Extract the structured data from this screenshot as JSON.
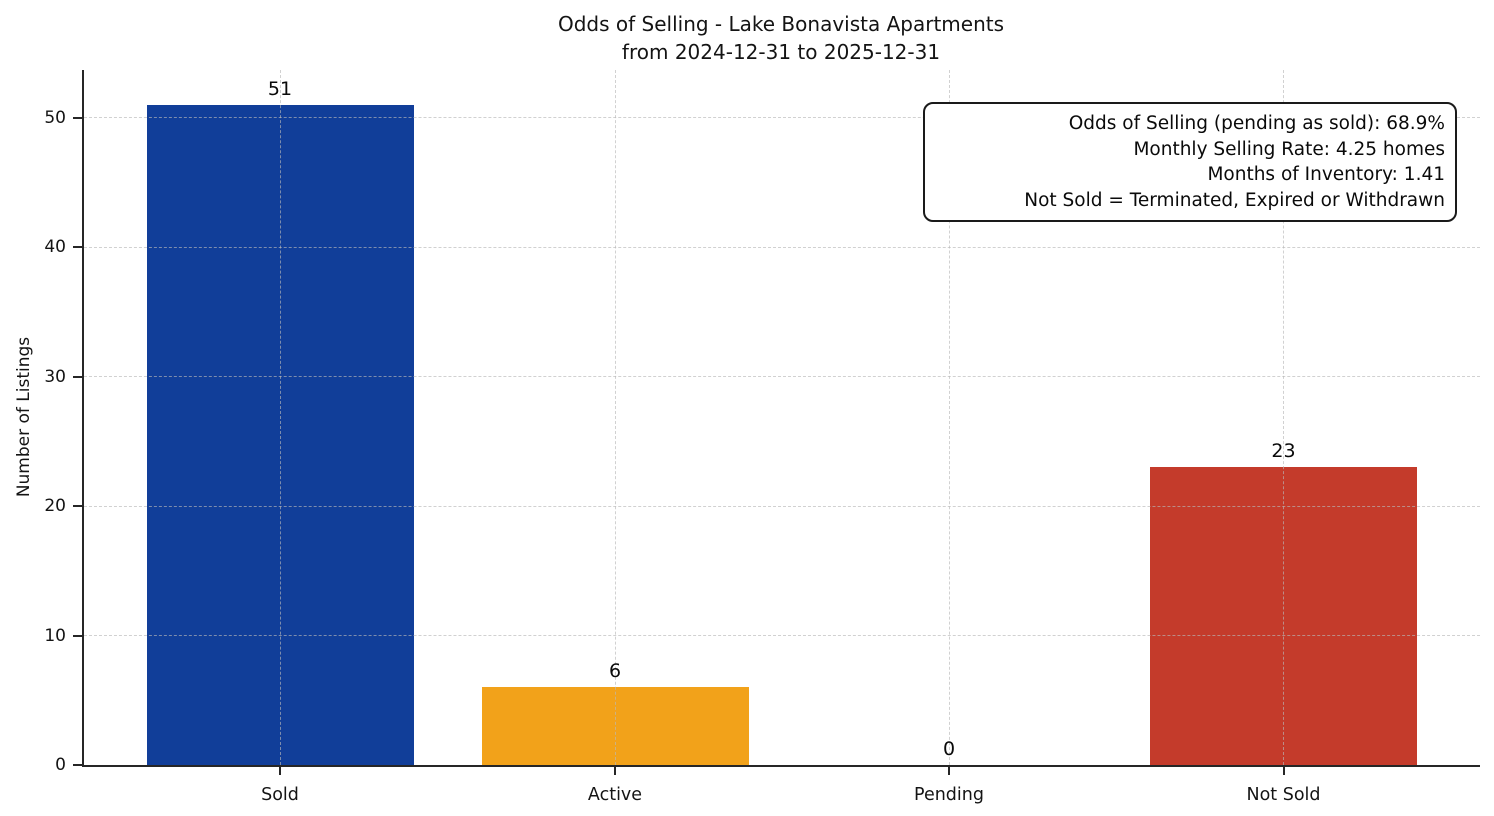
{
  "chart_data": {
    "type": "bar",
    "title": "Odds of Selling - Lake Bonavista Apartments",
    "subtitle": "from 2024-12-31 to 2025-12-31",
    "ylabel": "Number of Listings",
    "categories": [
      "Sold",
      "Active",
      "Pending",
      "Not Sold"
    ],
    "values": [
      51,
      6,
      0,
      23
    ],
    "bar_labels": [
      "51",
      "6",
      "0",
      "23"
    ],
    "bar_colors": [
      "#113e99",
      "#f2a21a",
      null,
      "#c43b2b"
    ],
    "yticks": [
      0,
      10,
      20,
      30,
      40,
      50
    ],
    "ylim": [
      0,
      53.7
    ],
    "grid": true,
    "grid_style": "dashed",
    "legend_position": "none",
    "annotation": {
      "lines": [
        "Odds of Selling (pending as sold): 68.9%",
        "Monthly Selling Rate: 4.25 homes",
        "Months of Inventory: 1.41",
        "Not Sold = Terminated, Expired or Withdrawn"
      ]
    }
  }
}
